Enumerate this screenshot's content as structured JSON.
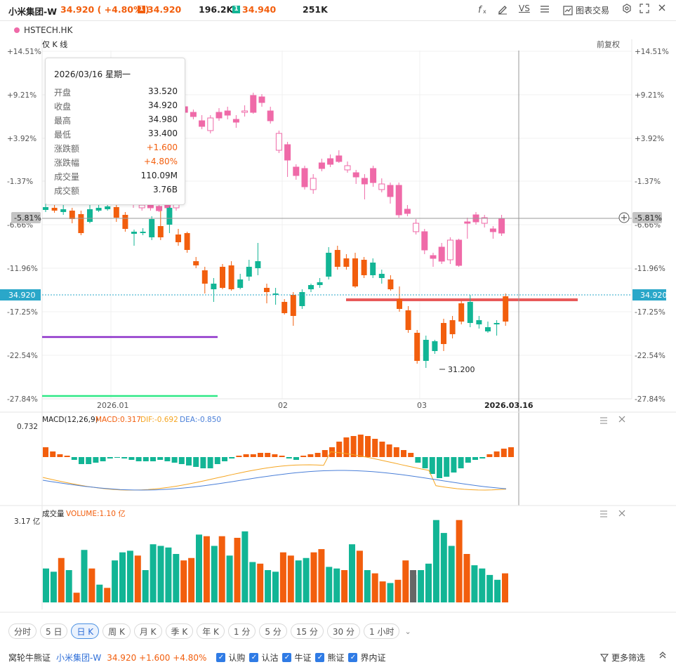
{
  "header": {
    "name": "小米集团-W",
    "price_change": "34.920 ( +4.80% )",
    "bid_tag": "1",
    "bid_price": "34.920",
    "bid_size": "196.2K",
    "ask_tag": "1",
    "ask_price": "34.940",
    "ask_size": "251K",
    "tools": {
      "formula_icon": "f(x)-icon",
      "draw_icon": "pencil-icon",
      "compare_label": "VS",
      "list_icon": "list-icon",
      "trade_label": "图表交易",
      "settings_icon": "gear-icon",
      "expand_icon": "expand-icon"
    }
  },
  "overlay_symbol": "HSTECH.HK",
  "chart_header": {
    "left_label": "仅 K 线",
    "right_label": "前复权"
  },
  "tooltip": {
    "date": "2026/03/16 星期一",
    "rows": [
      {
        "k": "开盘",
        "v": "33.520",
        "up": false
      },
      {
        "k": "收盘",
        "v": "34.920",
        "up": false
      },
      {
        "k": "最高",
        "v": "34.980",
        "up": false
      },
      {
        "k": "最低",
        "v": "33.400",
        "up": false
      },
      {
        "k": "涨跌额",
        "v": "+1.600",
        "up": true
      },
      {
        "k": "涨跌幅",
        "v": "+4.80%",
        "up": true
      },
      {
        "k": "成交量",
        "v": "110.09M",
        "up": false
      },
      {
        "k": "成交额",
        "v": "3.76B",
        "up": false
      }
    ]
  },
  "axis": {
    "pct_ticks": [
      "+14.51%",
      "+9.21%",
      "+3.92%",
      "-1.37%",
      "-6.66%",
      "-11.96%",
      "-17.25%",
      "-22.54%",
      "-27.84%"
    ],
    "right_ticks": [
      "+14.51%",
      "+9.21%",
      "+3.92%",
      "-1.37%",
      "-6.66%",
      "-11.96%",
      "-17.25%",
      "-22.54%",
      "-27.84%"
    ],
    "crosshair_pct": "-5.81%",
    "last_price": "34.920",
    "x_labels": [
      "2026.01",
      "02",
      "03",
      "2026.03.16"
    ],
    "low_marker": "31.200"
  },
  "macd": {
    "title": "MACD(12,26,9)",
    "macd": "MACD:0.317",
    "dif": "DIF:-0.692",
    "dea": "DEA:-0.850",
    "top_value": "0.732"
  },
  "volume": {
    "title": "成交量",
    "value": "VOLUME:1.10 亿",
    "top_value": "3.17 亿"
  },
  "periods": {
    "tabs": [
      "分时",
      "5 日",
      "日 K",
      "周 K",
      "月 K",
      "季 K",
      "年 K",
      "1 分",
      "5 分",
      "15 分",
      "30 分",
      "1 小时"
    ],
    "active_index": 2
  },
  "warrants": {
    "label": "窝轮牛熊证",
    "name": "小米集团-W",
    "quote": "34.920 +1.600 +4.80%",
    "options": [
      "认购",
      "认沽",
      "牛证",
      "熊证",
      "界内证"
    ],
    "more_label": "更多筛选"
  },
  "colors": {
    "up": "#f25e0d",
    "down": "#12b595",
    "compare": "#ef6aa8",
    "dif": "#f5a623",
    "dea": "#4a7fd8",
    "accent": "#2f7be5"
  }
}
